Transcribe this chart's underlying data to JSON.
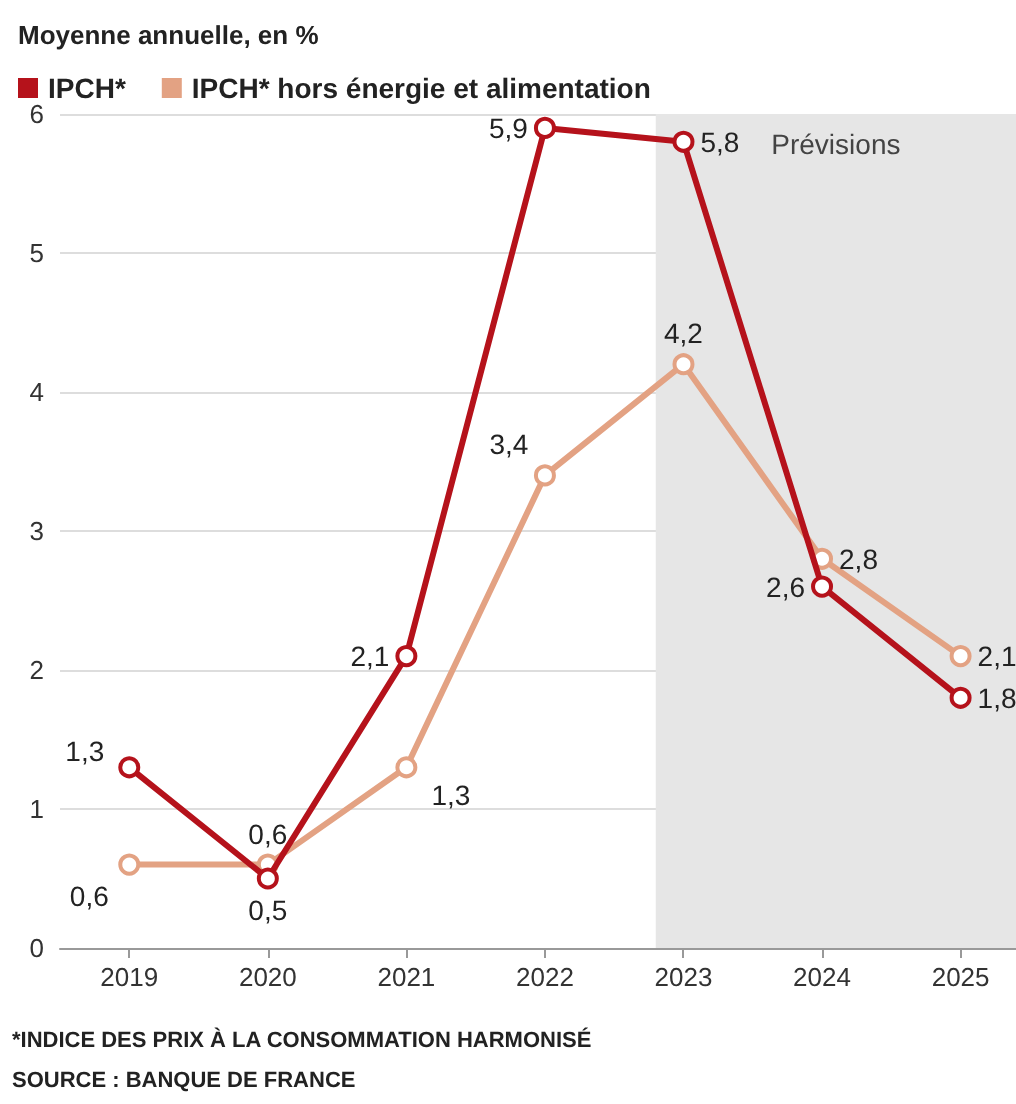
{
  "chart_data": {
    "type": "line",
    "title": "Moyenne annuelle, en %",
    "x": [
      2019,
      2020,
      2021,
      2022,
      2023,
      2024,
      2025
    ],
    "series": [
      {
        "name": "IPCH*",
        "color": "#b5121b",
        "values": [
          1.3,
          0.5,
          2.1,
          5.9,
          5.8,
          2.6,
          1.8
        ],
        "value_labels": [
          "1,3",
          "0,5",
          "2,1",
          "5,9",
          "5,8",
          "2,6",
          "1,8"
        ]
      },
      {
        "name": "IPCH* hors énergie et alimentation",
        "color": "#e3a283",
        "values": [
          0.6,
          0.6,
          1.3,
          3.4,
          4.2,
          2.8,
          2.1
        ],
        "value_labels": [
          "0,6",
          "0,6",
          "1,3",
          "3,4",
          "4,2",
          "2,8",
          "2,1"
        ]
      }
    ],
    "xlim": [
      2018.5,
      2025.4
    ],
    "xticks": [
      2019,
      2020,
      2021,
      2022,
      2023,
      2024,
      2025
    ],
    "ylim": [
      0,
      6
    ],
    "yticks": [
      0,
      1,
      2,
      3,
      4,
      5,
      6
    ],
    "bands": [
      {
        "axis": "x",
        "from": 2022.8,
        "to": 2025.4,
        "label": "Prévisions",
        "color": "#e6e6e6"
      }
    ],
    "annotations": [
      "*INDICE DES PRIX À LA CONSOMMATION HARMONISÉ",
      "SOURCE : BANQUE DE FRANCE"
    ],
    "grid": "y",
    "legend": "top left",
    "marker": "circle",
    "line_style": "solid"
  }
}
